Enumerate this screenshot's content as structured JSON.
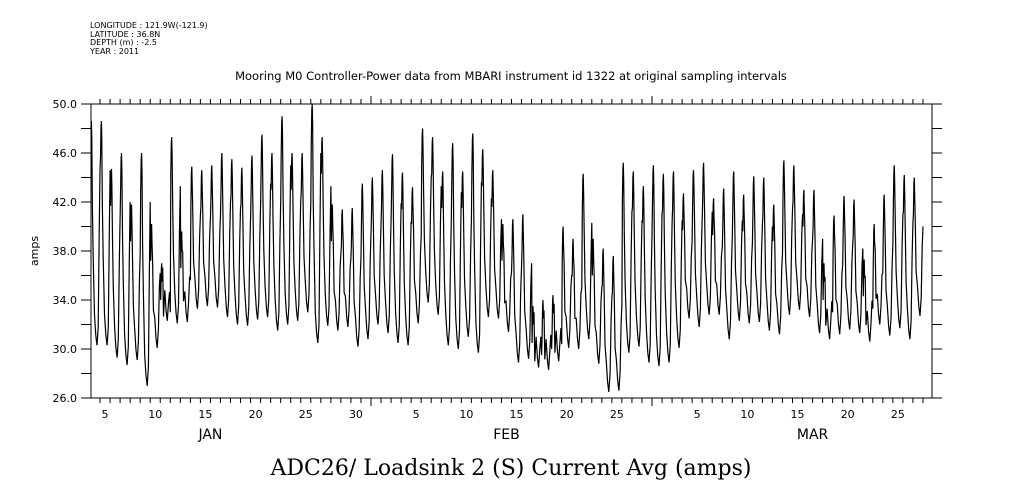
{
  "meta": {
    "longitude": "LONGITUDE : 121.9W(-121.9)",
    "latitude": "LATITUDE : 36.8N",
    "depth": "DEPTH (m) : -2.5",
    "year": "YEAR : 2011"
  },
  "chart_data": {
    "type": "line",
    "title": "Mooring M0 Controller-Power data from MBARI instrument id 1322 at original sampling intervals",
    "xlabel": "ADC26/ Loadsink 2 (S) Current Avg (amps)",
    "ylabel": "amps",
    "ylim": [
      26.0,
      50.0
    ],
    "xlim_day_of_year": [
      4.1,
      87.9
    ],
    "yticks": [
      "26.0",
      "30.0",
      "34.0",
      "38.0",
      "42.0",
      "46.0",
      "50.0"
    ],
    "months": [
      {
        "name": "JAN",
        "start_day": 1,
        "labels": [
          "5",
          "10",
          "15",
          "20",
          "25",
          "30"
        ],
        "label_days": [
          5,
          10,
          15,
          20,
          25,
          30
        ]
      },
      {
        "name": "FEB",
        "start_day": 32,
        "labels": [
          "5",
          "10",
          "15",
          "20",
          "25"
        ],
        "label_days": [
          5,
          10,
          15,
          20,
          25
        ]
      },
      {
        "name": "MAR",
        "start_day": 60,
        "labels": [
          "5",
          "10",
          "15",
          "20",
          "25"
        ],
        "label_days": [
          5,
          10,
          15,
          20,
          25
        ]
      }
    ],
    "grid": false,
    "series": [
      {
        "name": "Current Avg",
        "first_day_of_year": 4,
        "daily_peaks": [
          48.6,
          48.6,
          44.7,
          46.0,
          41.8,
          46.0,
          40.2,
          37.0,
          47.3,
          39.6,
          44.9,
          44.6,
          45.0,
          46.0,
          45.5,
          44.8,
          45.8,
          47.5,
          46.0,
          49.0,
          46.0,
          46.0,
          50.0,
          47.3,
          41.8,
          41.4,
          41.5,
          43.5,
          44.0,
          44.6,
          45.9,
          44.4,
          43.2,
          48.0,
          47.3,
          44.5,
          46.8,
          44.5,
          47.6,
          46.3,
          44.6,
          40.2,
          40.6,
          41.0,
          33.5,
          34.0,
          34.4,
          40.0,
          39.0,
          44.3,
          39.0,
          38.2,
          37.6,
          45.2,
          44.5,
          43.3,
          45.0,
          44.3,
          44.5,
          42.7,
          44.6,
          45.2,
          42.3,
          43.1,
          44.5,
          42.6,
          44.1,
          44.0,
          41.8,
          45.4,
          45.0,
          43.0,
          43.0,
          37.0,
          40.9,
          42.5,
          42.2,
          37.3,
          40.2,
          42.6,
          45.0,
          44.2,
          44.0
        ],
        "daily_troughs": [
          30.3,
          30.3,
          29.3,
          28.7,
          29.1,
          27.0,
          30.1,
          32.3,
          32.1,
          32.2,
          33.3,
          33.5,
          33.4,
          32.6,
          32.0,
          31.9,
          32.4,
          32.6,
          31.5,
          32.0,
          32.3,
          33.0,
          30.5,
          31.9,
          31.5,
          31.8,
          30.2,
          30.8,
          32.0,
          31.3,
          30.5,
          30.3,
          32.1,
          33.8,
          32.8,
          30.3,
          30.0,
          31.0,
          29.7,
          32.6,
          32.5,
          31.4,
          28.9,
          29.2,
          28.5,
          28.3,
          29.0,
          30.1,
          30.0,
          30.8,
          28.8,
          26.5,
          26.6,
          29.7,
          30.2,
          28.9,
          28.6,
          28.9,
          30.1,
          32.5,
          31.8,
          32.8,
          32.8,
          30.8,
          32.3,
          32.1,
          32.2,
          31.5,
          31.2,
          32.8,
          33.2,
          32.6,
          31.3,
          30.8,
          31.2,
          31.6,
          31.3,
          30.6,
          32.0,
          31.1,
          31.7,
          30.8,
          32.7
        ]
      }
    ]
  }
}
